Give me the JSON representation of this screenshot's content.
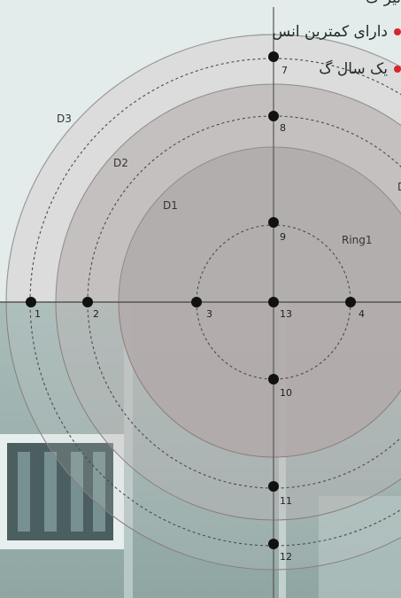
{
  "header_cut_text": "نیز گ",
  "bullets": [
    {
      "text": "دارای کمترین انس"
    },
    {
      "text": "یک سال گ"
    }
  ],
  "bullet_color": "#d9242b",
  "zone_labels": [
    {
      "id": "D3",
      "text": "D3"
    },
    {
      "id": "D2",
      "text": "D2"
    },
    {
      "id": "D1",
      "text": "D1"
    },
    {
      "id": "Ring1",
      "text": "Ring1"
    }
  ],
  "points": [
    {
      "id": "1",
      "label": "1"
    },
    {
      "id": "2",
      "label": "2"
    },
    {
      "id": "3",
      "label": "3"
    },
    {
      "id": "4",
      "label": "4"
    },
    {
      "id": "7",
      "label": "7"
    },
    {
      "id": "8",
      "label": "8"
    },
    {
      "id": "9",
      "label": "9"
    },
    {
      "id": "10",
      "label": "10"
    },
    {
      "id": "11",
      "label": "11"
    },
    {
      "id": "12",
      "label": "12"
    },
    {
      "id": "13",
      "label": "13"
    }
  ],
  "colors": {
    "background": "#e3ecea",
    "d3_fill": "#dcdcdc",
    "d2_fill": "#c4c0c0",
    "d1_fill": "#b3aeae",
    "photo_tint": "#9fb3b0",
    "points": "#111111"
  }
}
